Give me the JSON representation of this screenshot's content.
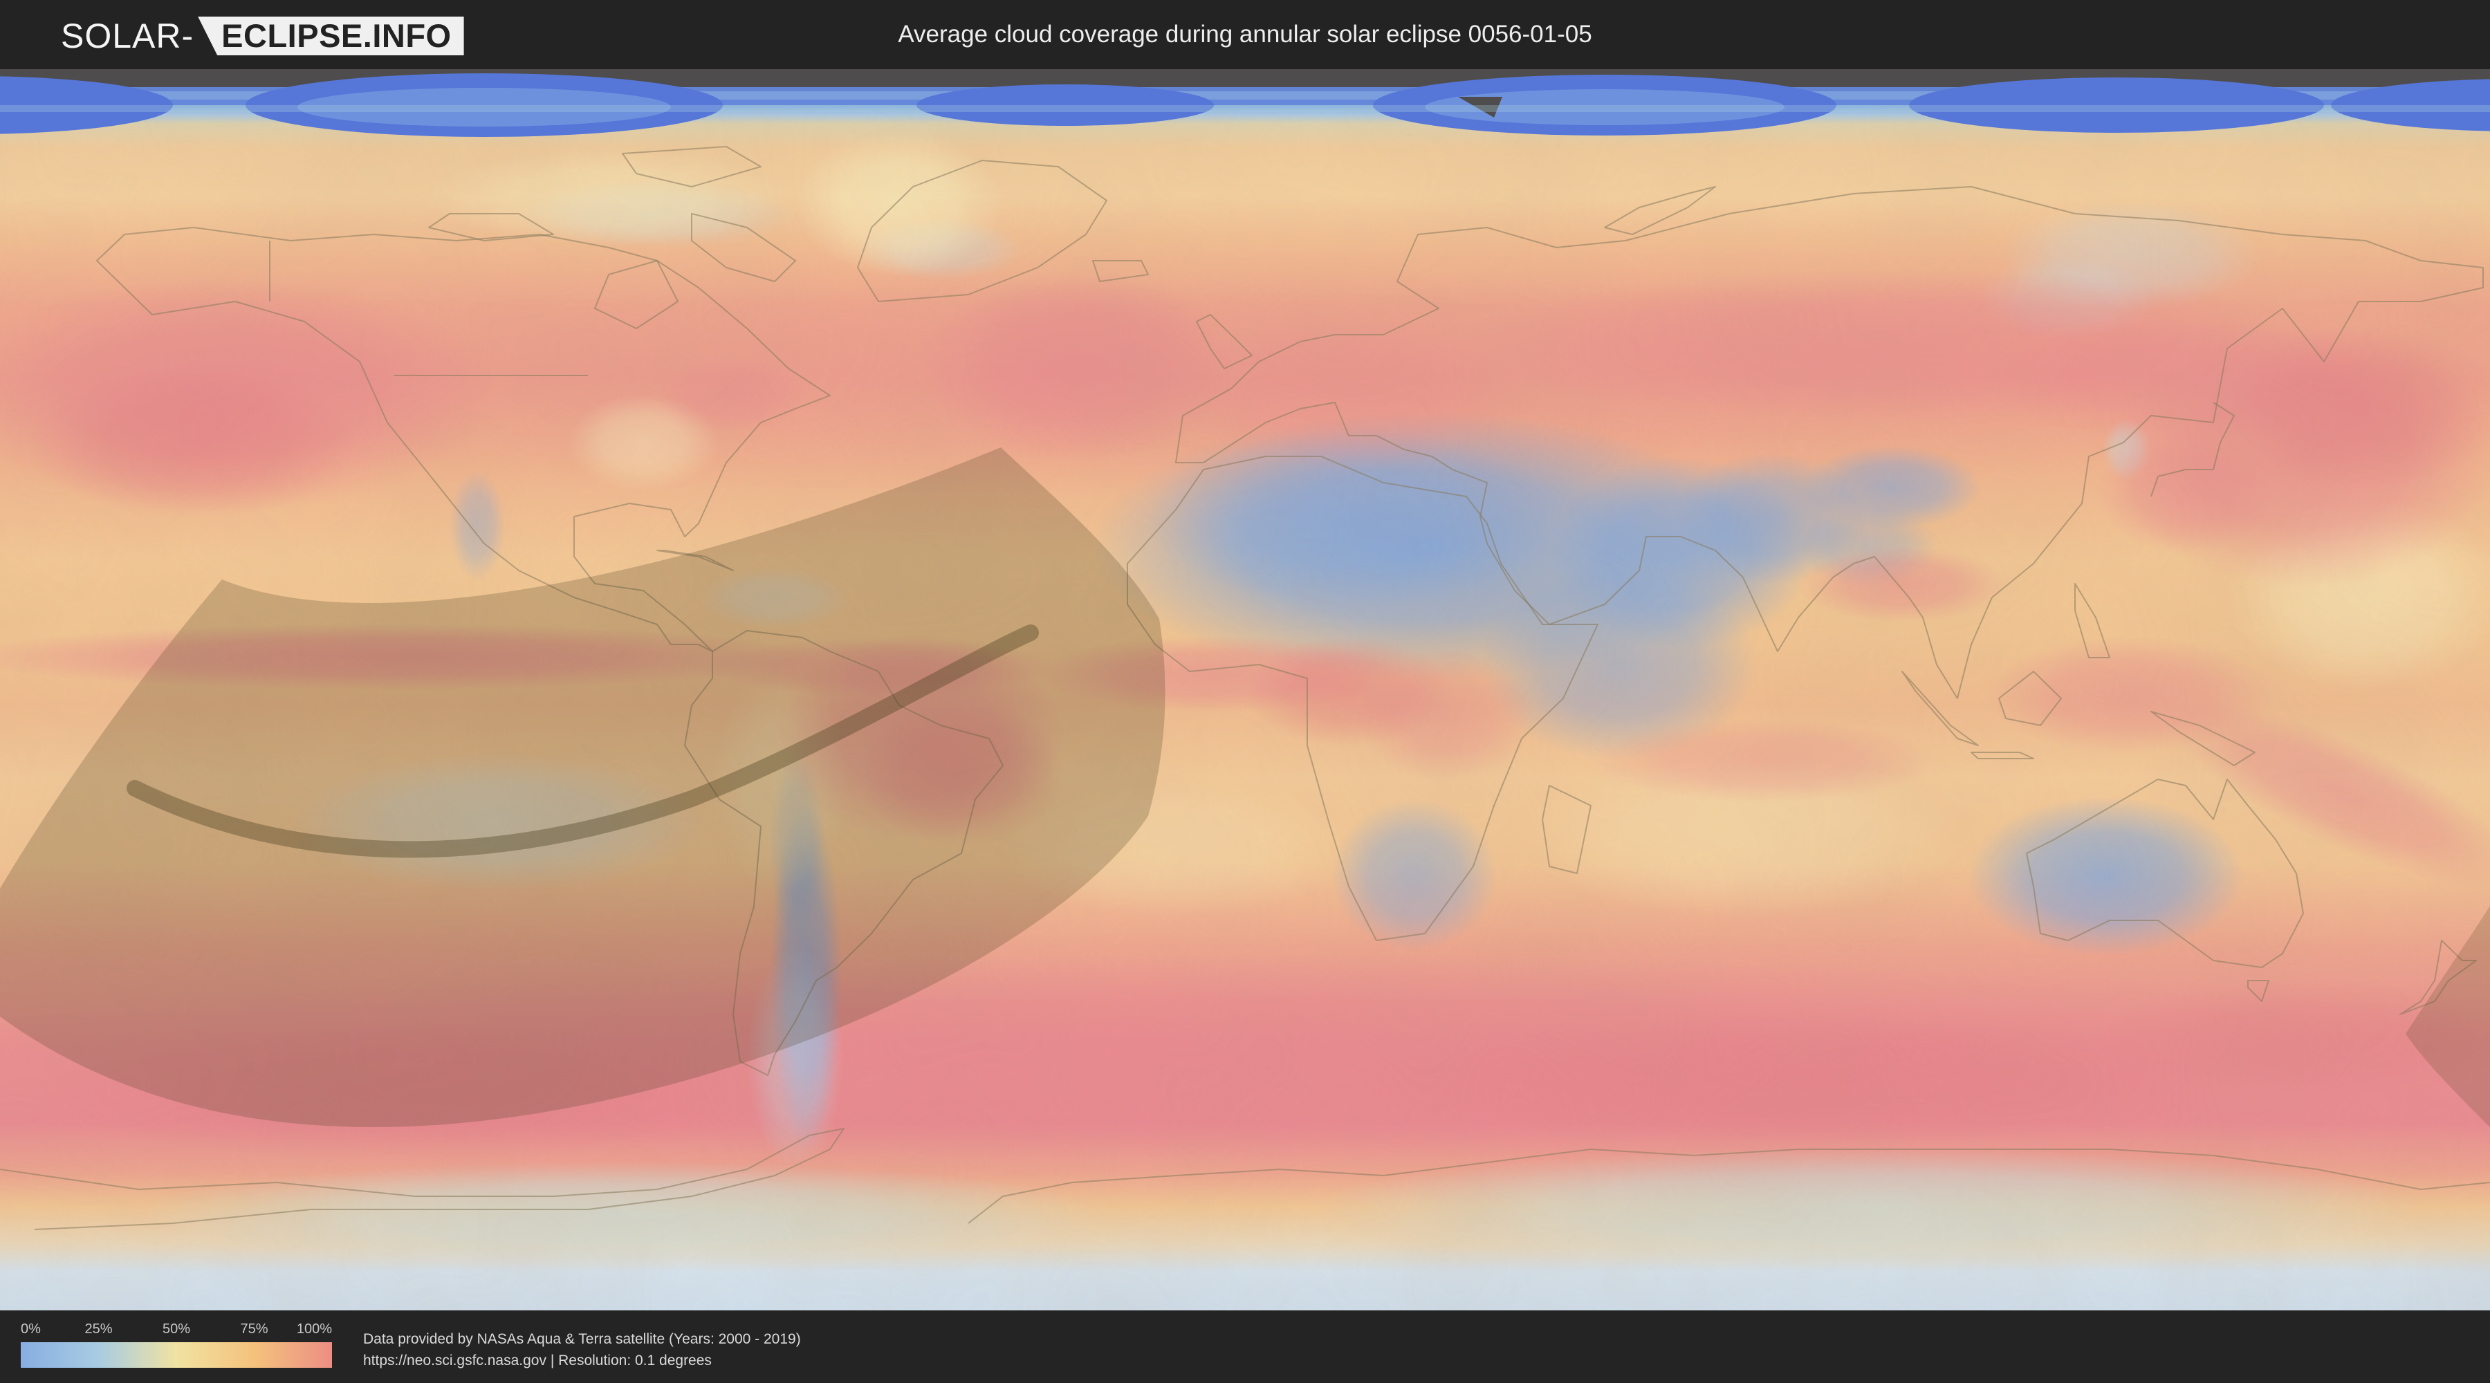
{
  "header": {
    "logo": {
      "prefix": "SOLAR-",
      "boxed": "ECLIPSE.INFO"
    },
    "title": "Average cloud coverage during annular solar eclipse 0056-01-05"
  },
  "map": {
    "description": "World map heatmap of average cloud coverage with shaded annular eclipse path band over the South Pacific and South America",
    "colors": {
      "low_coverage": "#88aee2",
      "mid_coverage": "#f0e2a2",
      "high_coverage": "#ec8e84",
      "eclipse_band": "rgba(74,64,32,0.24)"
    }
  },
  "legend": {
    "ticks": [
      "0%",
      "25%",
      "50%",
      "75%",
      "100%"
    ],
    "gradient": [
      "#88aee2",
      "#a8cce2",
      "#f0e2a2",
      "#f4c27c",
      "#ec8e84"
    ]
  },
  "attribution": {
    "line1": "Data provided by NASAs Aqua & Terra satellite (Years: 2000 - 2019)",
    "line2": "https://neo.sci.gsfc.nasa.gov | Resolution: 0.1 degrees"
  }
}
